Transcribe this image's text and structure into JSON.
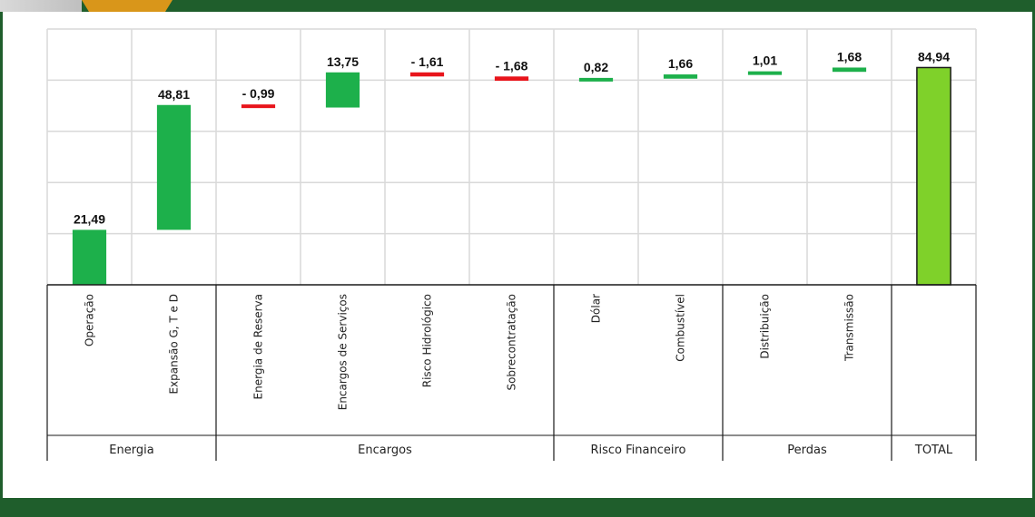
{
  "colors": {
    "frame": "#1f5e2c",
    "accent_orange": "#d9961a",
    "increase": "#1db04b",
    "decrease": "#e8141b",
    "total": "#7fd12a",
    "grid": "#d9d9d9"
  },
  "chart_data": {
    "type": "bar",
    "subtype": "waterfall",
    "ylim": [
      0,
      100
    ],
    "grid": true,
    "categories": [
      "Operação",
      "Expansão G, T e D",
      "Energia de Reserva",
      "Encargos de Serviços",
      "Risco Hidrológico",
      "Sobrecontratação",
      "Dólar",
      "Combustível",
      "Distribuição",
      "Transmissão",
      ""
    ],
    "values": [
      21.49,
      48.81,
      -0.99,
      13.75,
      -1.61,
      -1.68,
      0.82,
      1.66,
      1.01,
      1.68,
      84.94
    ],
    "value_labels": [
      "21,49",
      "48,81",
      "- 0,99",
      "13,75",
      "- 1,61",
      "- 1,68",
      "0,82",
      "1,66",
      "1,01",
      "1,68",
      "84,94"
    ],
    "kinds": [
      "increase",
      "increase",
      "decrease",
      "increase",
      "decrease",
      "decrease",
      "increase",
      "increase",
      "increase",
      "increase",
      "total"
    ],
    "groups": [
      {
        "label": "Energia",
        "count": 2
      },
      {
        "label": "Encargos",
        "count": 4
      },
      {
        "label": "Risco Financeiro",
        "count": 2
      },
      {
        "label": "Perdas",
        "count": 2
      },
      {
        "label": "TOTAL",
        "count": 1
      }
    ]
  }
}
